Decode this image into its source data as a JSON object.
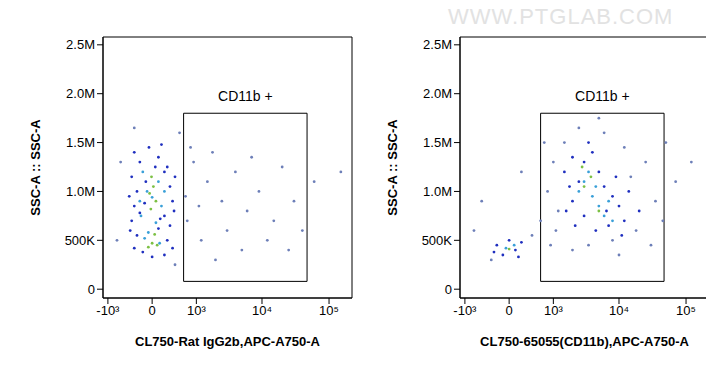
{
  "watermark": "WWW.PTGLAB.COM",
  "chart_data": [
    {
      "type": "scatter",
      "x_label": "CL750-Rat IgG2b,APC-A750-A",
      "y_label": "SSC-A :: SSC-A",
      "xlim": [
        -1200,
        220000
      ],
      "xticks": [
        {
          "value": -1000,
          "label": "-10³"
        },
        0,
        {
          "value": 1000,
          "label": "10³"
        },
        {
          "value": 10000,
          "label": "10⁴"
        },
        {
          "value": 100000,
          "label": "10⁵"
        }
      ],
      "ylim": [
        -90000,
        2580000
      ],
      "yticks": [
        0,
        {
          "value": 500000,
          "label": "500K"
        },
        {
          "value": 1000000,
          "label": "1.0M"
        },
        {
          "value": 1500000,
          "label": "1.5M"
        },
        {
          "value": 2000000,
          "label": "2.0M"
        },
        {
          "value": 2500000,
          "label": "2.5M"
        }
      ],
      "gate": {
        "label": "CD11b +",
        "x": [
          600,
          47000
        ],
        "y": [
          80000,
          1800000
        ]
      },
      "series": [
        {
          "color": "#6d7fb8",
          "points": [
            [
              900,
              1300000
            ],
            [
              1500,
              1100000
            ],
            [
              2500,
              900000
            ],
            [
              4000,
              1200000
            ],
            [
              700,
              700000
            ],
            [
              1200,
              500000
            ],
            [
              3000,
              600000
            ],
            [
              6000,
              800000
            ],
            [
              9000,
              1000000
            ],
            [
              15000,
              700000
            ],
            [
              20000,
              1250000
            ],
            [
              30000,
              900000
            ],
            [
              800,
              1450000
            ],
            [
              2000,
              300000
            ],
            [
              5000,
              400000
            ],
            [
              12000,
              500000
            ],
            [
              40000,
              600000
            ],
            [
              650,
              950000
            ],
            [
              1100,
              850000
            ],
            [
              1800,
              1400000
            ],
            [
              7000,
              1350000
            ],
            [
              25000,
              400000
            ],
            [
              60000,
              1100000
            ],
            [
              150000,
              1200000
            ],
            [
              -600,
              1300000
            ],
            [
              -700,
              500000
            ],
            [
              500,
              1600000
            ],
            [
              -300,
              1650000
            ],
            [
              400,
              250000
            ]
          ]
        },
        {
          "color": "#1f2fbf",
          "points": [
            [
              -300,
              1400000
            ],
            [
              -200,
              1300000
            ],
            [
              100,
              1350000
            ],
            [
              250,
              1250000
            ],
            [
              -350,
              1150000
            ],
            [
              200,
              1200000
            ],
            [
              -250,
              1000000
            ],
            [
              300,
              1050000
            ],
            [
              -100,
              1100000
            ],
            [
              350,
              900000
            ],
            [
              -300,
              850000
            ],
            [
              200,
              750000
            ],
            [
              -200,
              780000
            ],
            [
              300,
              650000
            ],
            [
              -350,
              700000
            ],
            [
              100,
              620000
            ],
            [
              -250,
              550000
            ],
            [
              250,
              500000
            ],
            [
              -150,
              380000
            ],
            [
              200,
              350000
            ],
            [
              -300,
              420000
            ],
            [
              0,
              330000
            ],
            [
              350,
              420000
            ],
            [
              -50,
              1450000
            ],
            [
              150,
              1480000
            ],
            [
              -400,
              950000
            ],
            [
              400,
              1150000
            ],
            [
              -380,
              600000
            ],
            [
              380,
              800000
            ],
            [
              50,
              1250000
            ],
            [
              -120,
              880000
            ],
            [
              130,
              720000
            ]
          ]
        },
        {
          "color": "#3aa0d8",
          "points": [
            [
              -150,
              1200000
            ],
            [
              100,
              1100000
            ],
            [
              -80,
              1000000
            ],
            [
              150,
              850000
            ],
            [
              -180,
              750000
            ],
            [
              60,
              680000
            ],
            [
              -60,
              580000
            ],
            [
              120,
              470000
            ],
            [
              -120,
              520000
            ],
            [
              0,
              940000
            ],
            [
              200,
              1000000
            ],
            [
              -200,
              900000
            ]
          ]
        },
        {
          "color": "#7cc043",
          "points": [
            [
              20,
              1050000
            ],
            [
              -40,
              980000
            ],
            [
              60,
              900000
            ],
            [
              -20,
              820000
            ],
            [
              0,
              470000
            ],
            [
              -60,
              430000
            ],
            [
              80,
              450000
            ],
            [
              40,
              560000
            ],
            [
              -10,
              1150000
            ]
          ]
        }
      ]
    },
    {
      "type": "scatter",
      "x_label": "CL750-65055(CD11b),APC-A750-A",
      "y_label": "SSC-A :: SSC-A",
      "xlim": [
        -1200,
        220000
      ],
      "xticks": [
        {
          "value": -1000,
          "label": "-10³"
        },
        0,
        {
          "value": 1000,
          "label": "10³"
        },
        {
          "value": 10000,
          "label": "10⁴"
        },
        {
          "value": 100000,
          "label": "10⁵"
        }
      ],
      "ylim": [
        -90000,
        2580000
      ],
      "yticks": [
        0,
        {
          "value": 500000,
          "label": "500K"
        },
        {
          "value": 1000000,
          "label": "1.0M"
        },
        {
          "value": 1500000,
          "label": "1.5M"
        },
        {
          "value": 2000000,
          "label": "2.0M"
        },
        {
          "value": 2500000,
          "label": "2.5M"
        }
      ],
      "gate": {
        "label": "CD11b +",
        "x": [
          600,
          47000
        ],
        "y": [
          80000,
          1800000
        ]
      },
      "series": [
        {
          "color": "#6d7fb8",
          "points": [
            [
              -700,
              600000
            ],
            [
              -500,
              900000
            ],
            [
              600,
              700000
            ],
            [
              800,
              1000000
            ],
            [
              900,
              450000
            ],
            [
              1000,
              1300000
            ],
            [
              1200,
              800000
            ],
            [
              1500,
              1500000
            ],
            [
              2000,
              400000
            ],
            [
              2500,
              1650000
            ],
            [
              3500,
              450000
            ],
            [
              6000,
              1600000
            ],
            [
              8000,
              500000
            ],
            [
              12000,
              1450000
            ],
            [
              18000,
              600000
            ],
            [
              25000,
              1300000
            ],
            [
              35000,
              900000
            ],
            [
              45000,
              700000
            ],
            [
              70000,
              1100000
            ],
            [
              120000,
              1300000
            ],
            [
              -300,
              300000
            ],
            [
              400,
              550000
            ],
            [
              200,
              1200000
            ],
            [
              1100,
              600000
            ],
            [
              50000,
              1500000
            ],
            [
              30000,
              450000
            ],
            [
              15000,
              1150000
            ],
            [
              700,
              1500000
            ],
            [
              5000,
              1750000
            ],
            [
              10000,
              350000
            ]
          ]
        },
        {
          "color": "#1f2fbf",
          "points": [
            [
              1500,
              1200000
            ],
            [
              2000,
              1350000
            ],
            [
              2500,
              1100000
            ],
            [
              3000,
              1300000
            ],
            [
              4000,
              1400000
            ],
            [
              5000,
              1200000
            ],
            [
              6000,
              1050000
            ],
            [
              8000,
              950000
            ],
            [
              10000,
              850000
            ],
            [
              12000,
              700000
            ],
            [
              7000,
              650000
            ],
            [
              4500,
              600000
            ],
            [
              3000,
              750000
            ],
            [
              2000,
              900000
            ],
            [
              1800,
              1050000
            ],
            [
              9000,
              1150000
            ],
            [
              14000,
              1000000
            ],
            [
              20000,
              800000
            ],
            [
              3500,
              1500000
            ],
            [
              2200,
              650000
            ],
            [
              6500,
              800000
            ],
            [
              11000,
              550000
            ],
            [
              1600,
              800000
            ],
            [
              -200,
              450000
            ],
            [
              100,
              400000
            ],
            [
              -100,
              350000
            ],
            [
              200,
              480000
            ],
            [
              -250,
              380000
            ],
            [
              0,
              500000
            ],
            [
              150,
              330000
            ]
          ]
        },
        {
          "color": "#3aa0d8",
          "points": [
            [
              3000,
              1100000
            ],
            [
              2500,
              1000000
            ],
            [
              4000,
              950000
            ],
            [
              5000,
              850000
            ],
            [
              6000,
              750000
            ],
            [
              3500,
              1200000
            ],
            [
              7000,
              900000
            ],
            [
              4500,
              1050000
            ],
            [
              8000,
              700000
            ],
            [
              -50,
              420000
            ],
            [
              80,
              450000
            ]
          ]
        },
        {
          "color": "#7cc043",
          "points": [
            [
              3000,
              1050000
            ],
            [
              3800,
              1150000
            ],
            [
              5000,
              800000
            ],
            [
              2800,
              1250000
            ],
            [
              0,
              410000
            ]
          ]
        }
      ]
    }
  ]
}
